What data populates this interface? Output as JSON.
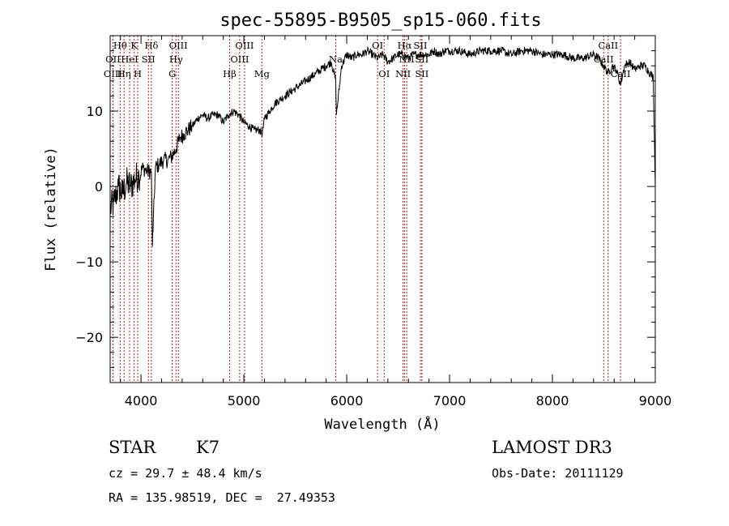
{
  "chart_data": {
    "type": "line",
    "title": "spec-55895-B9505_sp15-060.fits",
    "xlabel": "Wavelength (Å)",
    "ylabel": "Flux (relative)",
    "xlim": [
      3700,
      9000
    ],
    "ylim": [
      -26,
      20
    ],
    "x_ticks": [
      4000,
      5000,
      6000,
      7000,
      8000,
      9000
    ],
    "y_ticks": [
      -20,
      -10,
      0,
      10
    ],
    "grid": false,
    "line_color": "#000000",
    "marker_color": "#b22222",
    "series": [
      {
        "x": [
          3700,
          3740,
          3780,
          3820,
          3860,
          3900,
          3940,
          3980,
          4020,
          4060,
          4101,
          4110,
          4140,
          4180,
          4220,
          4260,
          4300,
          4340,
          4380,
          4420,
          4460,
          4500,
          4550,
          4600,
          4650,
          4700,
          4750,
          4800,
          4850,
          4900,
          4950,
          5000,
          5050,
          5100,
          5150,
          5180,
          5200,
          5250,
          5300,
          5350,
          5400,
          5450,
          5500,
          5550,
          5600,
          5650,
          5700,
          5750,
          5800,
          5850,
          5893,
          5900,
          5950,
          6000,
          6050,
          6100,
          6150,
          6200,
          6250,
          6300,
          6350,
          6400,
          6450,
          6500,
          6550,
          6600,
          6650,
          6700,
          6750,
          6800,
          6850,
          6900,
          6950,
          7000,
          7100,
          7200,
          7300,
          7400,
          7500,
          7600,
          7700,
          7800,
          7900,
          8000,
          8100,
          8200,
          8300,
          8400,
          8450,
          8498,
          8542,
          8580,
          8620,
          8662,
          8700,
          8750,
          8800,
          8850,
          8900,
          8950,
          8980,
          9000
        ],
        "y": [
          -3,
          -2,
          0,
          -1,
          0.5,
          0,
          1,
          1.5,
          2.5,
          2,
          2,
          -8,
          2.5,
          3,
          3.5,
          3.5,
          4,
          5,
          6.5,
          7,
          7.5,
          8,
          9,
          9.5,
          9,
          9.5,
          9.5,
          8.5,
          9.5,
          10,
          9.5,
          8.5,
          8,
          7.5,
          7.5,
          7,
          9,
          10,
          11,
          11.5,
          12,
          12.5,
          13,
          13.5,
          14,
          14.5,
          15,
          15.5,
          16,
          16.5,
          14,
          9.5,
          16,
          17.5,
          17,
          17.5,
          17.5,
          18,
          17.5,
          17,
          17.5,
          16.5,
          17,
          17.5,
          17.5,
          17,
          17.5,
          17.5,
          17.5,
          17.5,
          18,
          17.5,
          18,
          18,
          18,
          17.5,
          18,
          18,
          18,
          17.5,
          18,
          18,
          17.5,
          17.5,
          17.5,
          17,
          17,
          17.5,
          17,
          16,
          15,
          16,
          15.5,
          13.5,
          16,
          16.5,
          15.5,
          16,
          16,
          15,
          14.5,
          0
        ]
      }
    ],
    "spectral_lines": [
      {
        "label": "Hθ",
        "x": 3797,
        "row": 0
      },
      {
        "label": "K",
        "x": 3934,
        "row": 0
      },
      {
        "label": "Hδ",
        "x": 4101,
        "row": 0
      },
      {
        "label": "OIII",
        "x": 4363,
        "row": 0
      },
      {
        "label": "OIII",
        "x": 5007,
        "row": 0
      },
      {
        "label": "OI",
        "x": 6300,
        "row": 0
      },
      {
        "label": "Hα",
        "x": 6563,
        "row": 0
      },
      {
        "label": "SII",
        "x": 6716,
        "row": 0
      },
      {
        "label": "CaII",
        "x": 8542,
        "row": 0
      },
      {
        "label": "OII",
        "x": 3727,
        "row": 1
      },
      {
        "label": "HeI",
        "x": 3889,
        "row": 1
      },
      {
        "label": "SII",
        "x": 4072,
        "row": 1
      },
      {
        "label": "Hγ",
        "x": 4340,
        "row": 1
      },
      {
        "label": "OIII",
        "x": 4959,
        "row": 1
      },
      {
        "label": "Na",
        "x": 5893,
        "row": 1
      },
      {
        "label": "NII",
        "x": 6583,
        "row": 1
      },
      {
        "label": "SII",
        "x": 6731,
        "row": 1
      },
      {
        "label": "CaII",
        "x": 8498,
        "row": 1
      },
      {
        "label": "OIII",
        "x": 3727,
        "row": 2
      },
      {
        "label": "Hη",
        "x": 3835,
        "row": 2
      },
      {
        "label": "H",
        "x": 3968,
        "row": 2
      },
      {
        "label": "G",
        "x": 4304,
        "row": 2
      },
      {
        "label": "Hβ",
        "x": 4861,
        "row": 2
      },
      {
        "label": "Mg",
        "x": 5175,
        "row": 2
      },
      {
        "label": "OI",
        "x": 6364,
        "row": 2
      },
      {
        "label": "NII",
        "x": 6548,
        "row": 2
      },
      {
        "label": "SII",
        "x": 6731,
        "row": 2
      },
      {
        "label": "CaII",
        "x": 8662,
        "row": 2
      }
    ]
  },
  "info": {
    "class": "STAR",
    "subclass": "K7",
    "survey": "LAMOST DR3",
    "cz": "cz = 29.7 ± 48.4 km/s",
    "obs_date": "Obs-Date: 20111129",
    "coords": "RA = 135.98519, DEC =  27.49353"
  }
}
